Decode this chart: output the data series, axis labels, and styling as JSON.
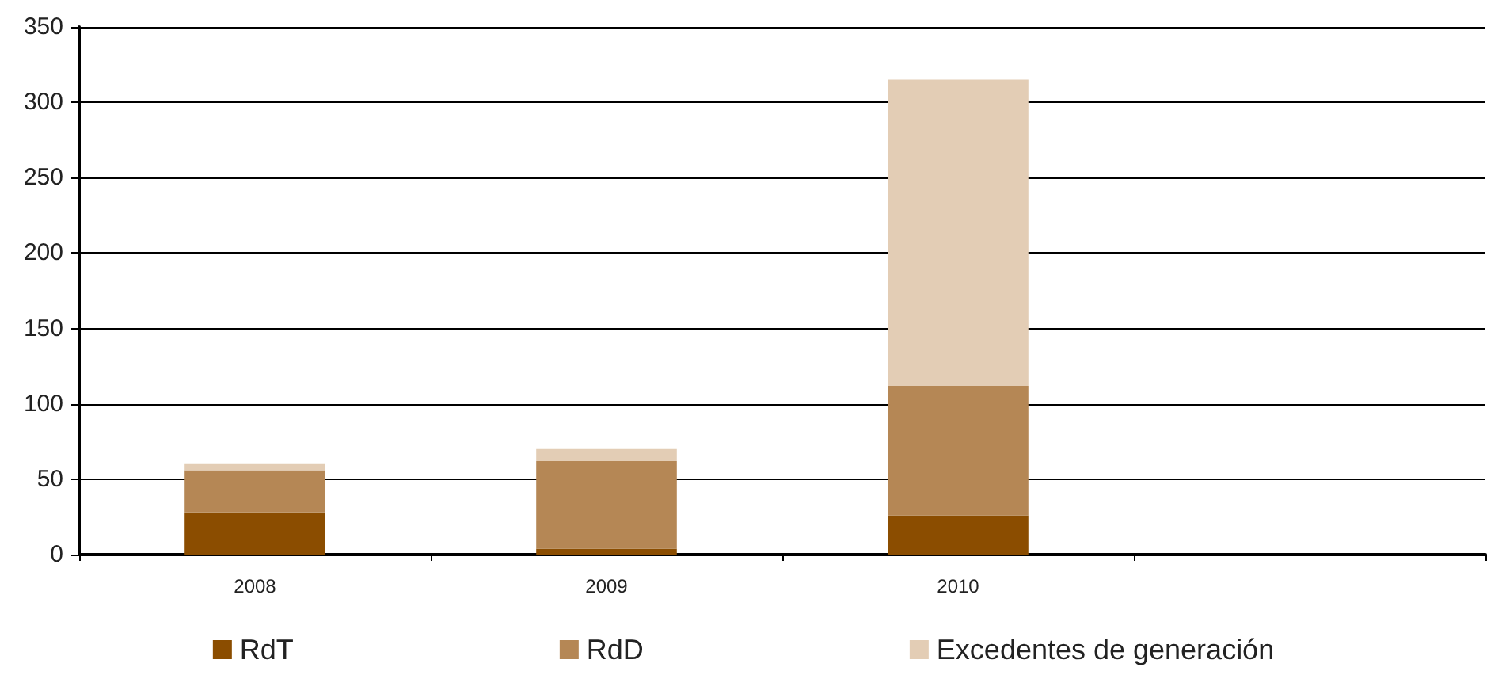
{
  "chart_data": {
    "type": "bar",
    "stacked": true,
    "categories": [
      "2008",
      "2009",
      "2010",
      null
    ],
    "series": [
      {
        "name": "RdT",
        "color": "#8b4d00",
        "values": [
          28,
          4,
          26,
          null
        ]
      },
      {
        "name": "RdD",
        "color": "#b58755",
        "values": [
          28,
          58,
          86,
          null
        ]
      },
      {
        "name": "Excedentes de generación",
        "color": "#e3cdb5",
        "values": [
          4,
          8,
          203,
          null
        ]
      }
    ],
    "ylim": [
      0,
      350
    ],
    "yticks": [
      0,
      50,
      100,
      150,
      200,
      250,
      300,
      350
    ],
    "grid": "y",
    "legend": "bottom"
  }
}
